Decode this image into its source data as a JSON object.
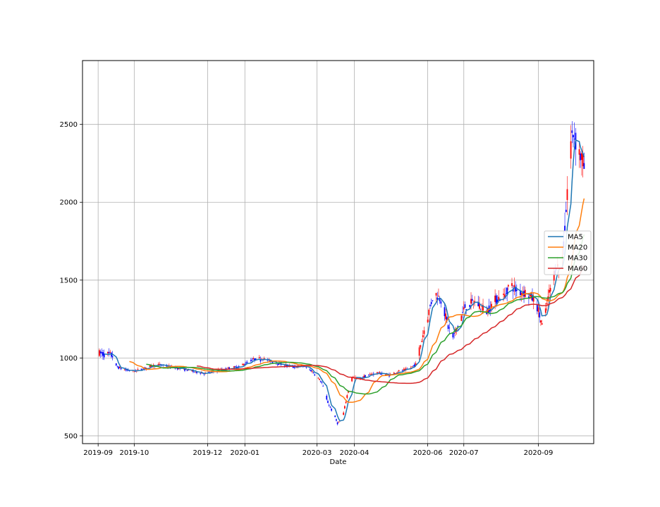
{
  "chart_data": {
    "type": "candlestick",
    "title": "",
    "xlabel": "Date",
    "ylabel": "",
    "ylim": [
      450,
      2910
    ],
    "grid": true,
    "x_ticks": [
      {
        "label": "2019-09",
        "date": "2019-09-01"
      },
      {
        "label": "2019-10",
        "date": "2019-10-01"
      },
      {
        "label": "2019-12",
        "date": "2019-12-01"
      },
      {
        "label": "2020-01",
        "date": "2020-01-01"
      },
      {
        "label": "2020-03",
        "date": "2020-03-01"
      },
      {
        "label": "2020-04",
        "date": "2020-04-01"
      },
      {
        "label": "2020-06",
        "date": "2020-06-01"
      },
      {
        "label": "2020-07",
        "date": "2020-07-01"
      },
      {
        "label": "2020-09",
        "date": "2020-09-01"
      }
    ],
    "y_ticks": [
      500,
      1000,
      1500,
      2000,
      2500
    ],
    "candle_colors": {
      "up": "#ff0000",
      "down": "#0000ff"
    },
    "price_anchors": [
      [
        "2019-09-01",
        1030
      ],
      [
        "2019-09-08",
        1025
      ],
      [
        "2019-09-13",
        1015
      ],
      [
        "2019-09-16",
        945
      ],
      [
        "2019-09-22",
        925
      ],
      [
        "2019-10-01",
        915
      ],
      [
        "2019-10-10",
        935
      ],
      [
        "2019-10-20",
        958
      ],
      [
        "2019-10-30",
        945
      ],
      [
        "2019-11-10",
        930
      ],
      [
        "2019-11-20",
        912
      ],
      [
        "2019-11-30",
        900
      ],
      [
        "2019-12-08",
        918
      ],
      [
        "2019-12-18",
        933
      ],
      [
        "2019-12-28",
        945
      ],
      [
        "2020-01-05",
        985
      ],
      [
        "2020-01-14",
        1000
      ],
      [
        "2020-01-22",
        980
      ],
      [
        "2020-02-01",
        958
      ],
      [
        "2020-02-10",
        942
      ],
      [
        "2020-02-18",
        950
      ],
      [
        "2020-02-25",
        920
      ],
      [
        "2020-03-01",
        880
      ],
      [
        "2020-03-05",
        840
      ],
      [
        "2020-03-09",
        730
      ],
      [
        "2020-03-14",
        650
      ],
      [
        "2020-03-18",
        580
      ],
      [
        "2020-03-22",
        610
      ],
      [
        "2020-03-26",
        760
      ],
      [
        "2020-03-30",
        880
      ],
      [
        "2020-04-05",
        860
      ],
      [
        "2020-04-10",
        885
      ],
      [
        "2020-04-20",
        905
      ],
      [
        "2020-04-30",
        890
      ],
      [
        "2020-05-08",
        915
      ],
      [
        "2020-05-15",
        925
      ],
      [
        "2020-05-22",
        960
      ],
      [
        "2020-05-28",
        1150
      ],
      [
        "2020-06-02",
        1300
      ],
      [
        "2020-06-06",
        1420
      ],
      [
        "2020-06-12",
        1380
      ],
      [
        "2020-06-18",
        1200
      ],
      [
        "2020-06-22",
        1130
      ],
      [
        "2020-06-27",
        1230
      ],
      [
        "2020-07-02",
        1330
      ],
      [
        "2020-07-10",
        1360
      ],
      [
        "2020-07-20",
        1300
      ],
      [
        "2020-07-28",
        1380
      ],
      [
        "2020-08-04",
        1400
      ],
      [
        "2020-08-08",
        1480
      ],
      [
        "2020-08-14",
        1430
      ],
      [
        "2020-08-22",
        1420
      ],
      [
        "2020-08-30",
        1360
      ],
      [
        "2020-09-05",
        1180
      ],
      [
        "2020-09-08",
        1350
      ],
      [
        "2020-09-12",
        1480
      ],
      [
        "2020-09-16",
        1600
      ],
      [
        "2020-09-20",
        1550
      ],
      [
        "2020-09-24",
        1950
      ],
      [
        "2020-09-27",
        2350
      ],
      [
        "2020-09-30",
        2450
      ],
      [
        "2020-10-03",
        2380
      ],
      [
        "2020-10-06",
        2300
      ],
      [
        "2020-10-09",
        2220
      ]
    ],
    "series": [
      {
        "name": "MA5",
        "color": "#1f77b4",
        "window": 5
      },
      {
        "name": "MA20",
        "color": "#ff7f0e",
        "window": 20
      },
      {
        "name": "MA30",
        "color": "#2ca02c",
        "window": 30
      },
      {
        "name": "MA60",
        "color": "#d62728",
        "window": 60
      }
    ],
    "legend_position": "center-right"
  }
}
